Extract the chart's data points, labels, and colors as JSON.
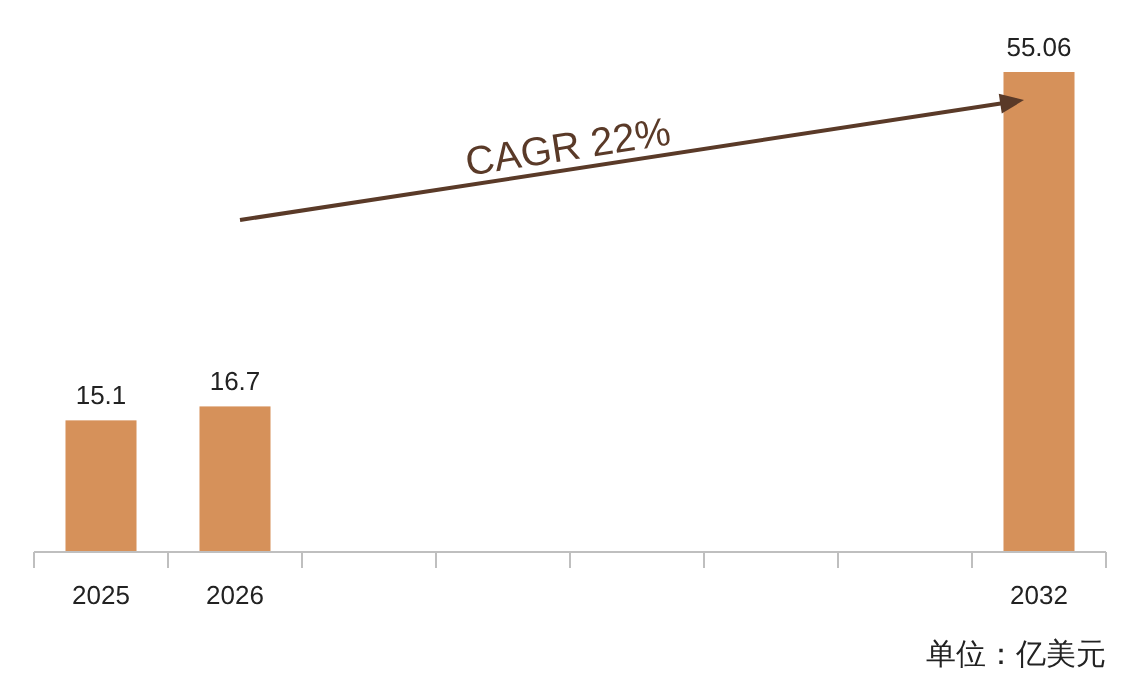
{
  "chart_data": {
    "type": "bar",
    "categories": [
      "2025",
      "2026",
      null,
      null,
      null,
      null,
      null,
      "2032"
    ],
    "values": [
      15.1,
      16.7,
      null,
      null,
      null,
      null,
      null,
      55.06
    ],
    "color": "#d6915a",
    "data_labels": true,
    "grid": false,
    "legend": false,
    "annotations": [
      "CAGR 22%",
      "单位：亿美元"
    ]
  }
}
